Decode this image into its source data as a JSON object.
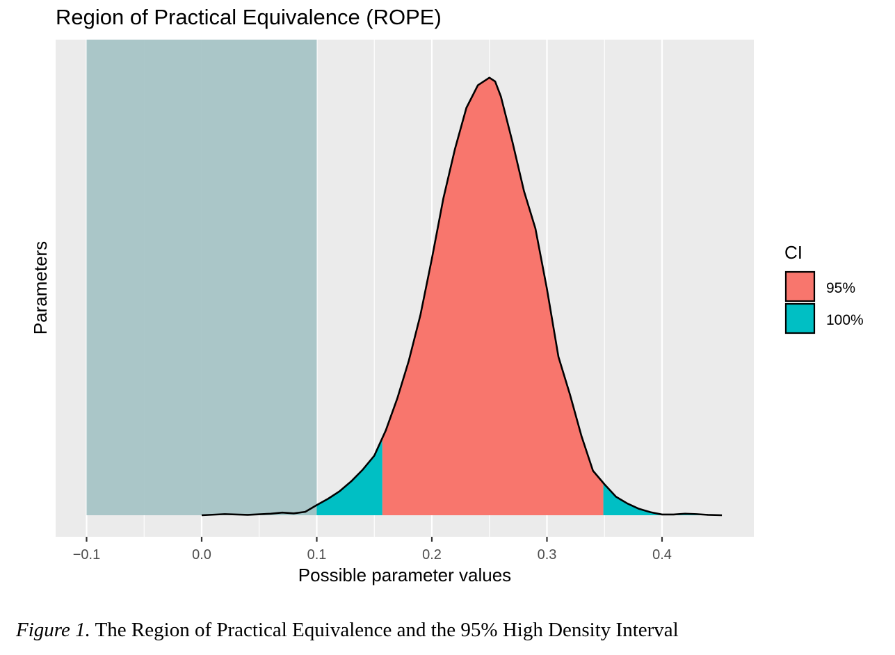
{
  "chart_data": {
    "type": "area",
    "title": "Region of Practical Equivalence (ROPE)",
    "xlabel": "Possible parameter values",
    "ylabel": "Parameters",
    "xlim": [
      -0.1,
      0.45
    ],
    "x_ticks": [
      -0.1,
      0.0,
      0.1,
      0.2,
      0.3,
      0.4
    ],
    "x_tick_labels": [
      "−0.1",
      "0.0",
      "0.1",
      "0.2",
      "0.3",
      "0.4"
    ],
    "y_ticks_shown": false,
    "grid": true,
    "legend": {
      "title": "CI",
      "placement": "right",
      "entries": [
        {
          "label": "95%",
          "color": "#F8766D"
        },
        {
          "label": "100%",
          "color": "#00BFC4"
        }
      ]
    },
    "rope": {
      "range": [
        -0.1,
        0.1
      ],
      "color": "#A6C4C6"
    },
    "hdi_95": [
      0.157,
      0.349
    ],
    "density": {
      "x": [
        0.0,
        0.02,
        0.04,
        0.06,
        0.07,
        0.08,
        0.09,
        0.1,
        0.11,
        0.12,
        0.13,
        0.14,
        0.15,
        0.16,
        0.17,
        0.18,
        0.19,
        0.2,
        0.21,
        0.22,
        0.23,
        0.24,
        0.25,
        0.255,
        0.26,
        0.27,
        0.28,
        0.29,
        0.3,
        0.31,
        0.32,
        0.33,
        0.34,
        0.35,
        0.36,
        0.37,
        0.38,
        0.39,
        0.4,
        0.41,
        0.42,
        0.43,
        0.44,
        0.452
      ],
      "y": [
        0.0,
        0.003,
        0.001,
        0.004,
        0.007,
        0.005,
        0.009,
        0.027,
        0.044,
        0.064,
        0.09,
        0.121,
        0.158,
        0.225,
        0.31,
        0.41,
        0.53,
        0.68,
        0.84,
        0.97,
        1.08,
        1.14,
        1.16,
        1.15,
        1.11,
        0.99,
        0.86,
        0.76,
        0.6,
        0.42,
        0.32,
        0.21,
        0.118,
        0.082,
        0.049,
        0.031,
        0.017,
        0.008,
        0.002,
        0.002,
        0.004,
        0.003,
        0.001,
        0.0
      ]
    },
    "ylim": [
      0,
      1.2
    ]
  },
  "caption": {
    "label": "Figure 1.",
    "text": "The Region of Practical Equivalence and the 95% High Density Interval"
  }
}
